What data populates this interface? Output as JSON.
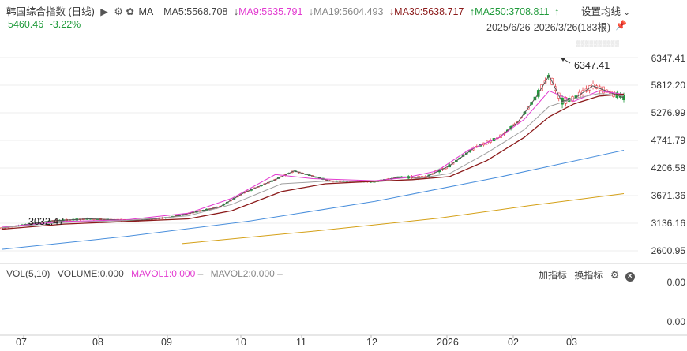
{
  "header": {
    "index_name": "韩国综合指数 (日线)",
    "ma_label": "MA",
    "ma5": "MA5:5568.708",
    "ma9": "MA9:5635.791",
    "ma19": "MA19:5604.493",
    "ma30": "MA30:5638.717",
    "ma250": "MA250:3708.811",
    "settings": "设置均线",
    "price": "5460.46",
    "change": "-3.22%",
    "range": "2025/6/26-2026/3/26(183根)"
  },
  "volume_panel": {
    "vol": "VOL(5,10)",
    "volume": "VOLUME:0.000",
    "mavol1": "MAVOL1:0.000",
    "mavol2": "MAVOL2:0.000",
    "add_indicator": "加指标",
    "switch_indicator": "换指标",
    "y_top": "0.00",
    "y_bottom": "0.00"
  },
  "colors": {
    "up": "#e8424a",
    "down": "#1f9a3a",
    "ma5": "#555555",
    "ma9": "#e23ad0",
    "ma19": "#a0a0a0",
    "ma30": "#8b1a1a",
    "ma250a": "#4a8fdc",
    "ma250b": "#d4a017"
  },
  "chart_data": {
    "type": "line",
    "title": "韩国综合指数 (日线)",
    "y_ticks": [
      "6347.41",
      "5812.20",
      "5276.99",
      "4741.79",
      "4206.58",
      "3671.36",
      "3136.16",
      "2600.95"
    ],
    "x_ticks": [
      "07",
      "08",
      "09",
      "10",
      "11",
      "12",
      "2026",
      "02",
      "03"
    ],
    "ylim": [
      2600.95,
      6347.41
    ],
    "annotations": {
      "high": "6347.41",
      "low": "3032.47"
    },
    "series": [
      {
        "name": "MA5",
        "x": [
          0,
          0.08,
          0.14,
          0.22,
          0.27,
          0.35,
          0.39,
          0.44,
          0.47,
          0.53,
          0.6,
          0.64,
          0.68,
          0.72,
          0.76,
          0.8,
          0.83,
          0.86,
          0.88,
          0.9,
          0.92,
          0.95,
          1.0
        ],
        "values": [
          3040,
          3180,
          3220,
          3190,
          3250,
          3450,
          3730,
          3980,
          4150,
          3950,
          3940,
          4030,
          4020,
          4250,
          4600,
          4800,
          5100,
          5600,
          6000,
          5500,
          5550,
          5800,
          5568
        ]
      },
      {
        "name": "MA9",
        "x": [
          0,
          0.1,
          0.2,
          0.3,
          0.37,
          0.44,
          0.5,
          0.6,
          0.65,
          0.7,
          0.75,
          0.8,
          0.84,
          0.88,
          0.92,
          0.96,
          1.0
        ],
        "values": [
          3060,
          3170,
          3200,
          3330,
          3620,
          4080,
          4000,
          3960,
          4020,
          4150,
          4550,
          4800,
          5150,
          5700,
          5500,
          5700,
          5635
        ]
      },
      {
        "name": "MA19",
        "x": [
          0,
          0.1,
          0.2,
          0.3,
          0.37,
          0.45,
          0.52,
          0.6,
          0.66,
          0.72,
          0.78,
          0.84,
          0.88,
          0.92,
          0.96,
          1.0
        ],
        "values": [
          3050,
          3150,
          3190,
          3280,
          3500,
          3900,
          3950,
          3940,
          3990,
          4100,
          4500,
          4950,
          5400,
          5550,
          5650,
          5604
        ]
      },
      {
        "name": "MA30",
        "x": [
          0,
          0.1,
          0.2,
          0.3,
          0.37,
          0.45,
          0.52,
          0.6,
          0.66,
          0.72,
          0.78,
          0.84,
          0.88,
          0.92,
          0.96,
          1.0
        ],
        "values": [
          3020,
          3120,
          3170,
          3220,
          3380,
          3750,
          3900,
          3950,
          3980,
          4040,
          4350,
          4800,
          5200,
          5450,
          5600,
          5638
        ]
      },
      {
        "name": "MA250",
        "x": [
          0,
          0.2,
          0.4,
          0.6,
          0.8,
          1.0
        ],
        "values": [
          2630,
          2880,
          3180,
          3560,
          4030,
          4550
        ]
      },
      {
        "name": "MA250b",
        "x": [
          0.29,
          0.5,
          0.7,
          0.85,
          1.0
        ],
        "values": [
          2740,
          2980,
          3230,
          3480,
          3709
        ]
      }
    ]
  }
}
